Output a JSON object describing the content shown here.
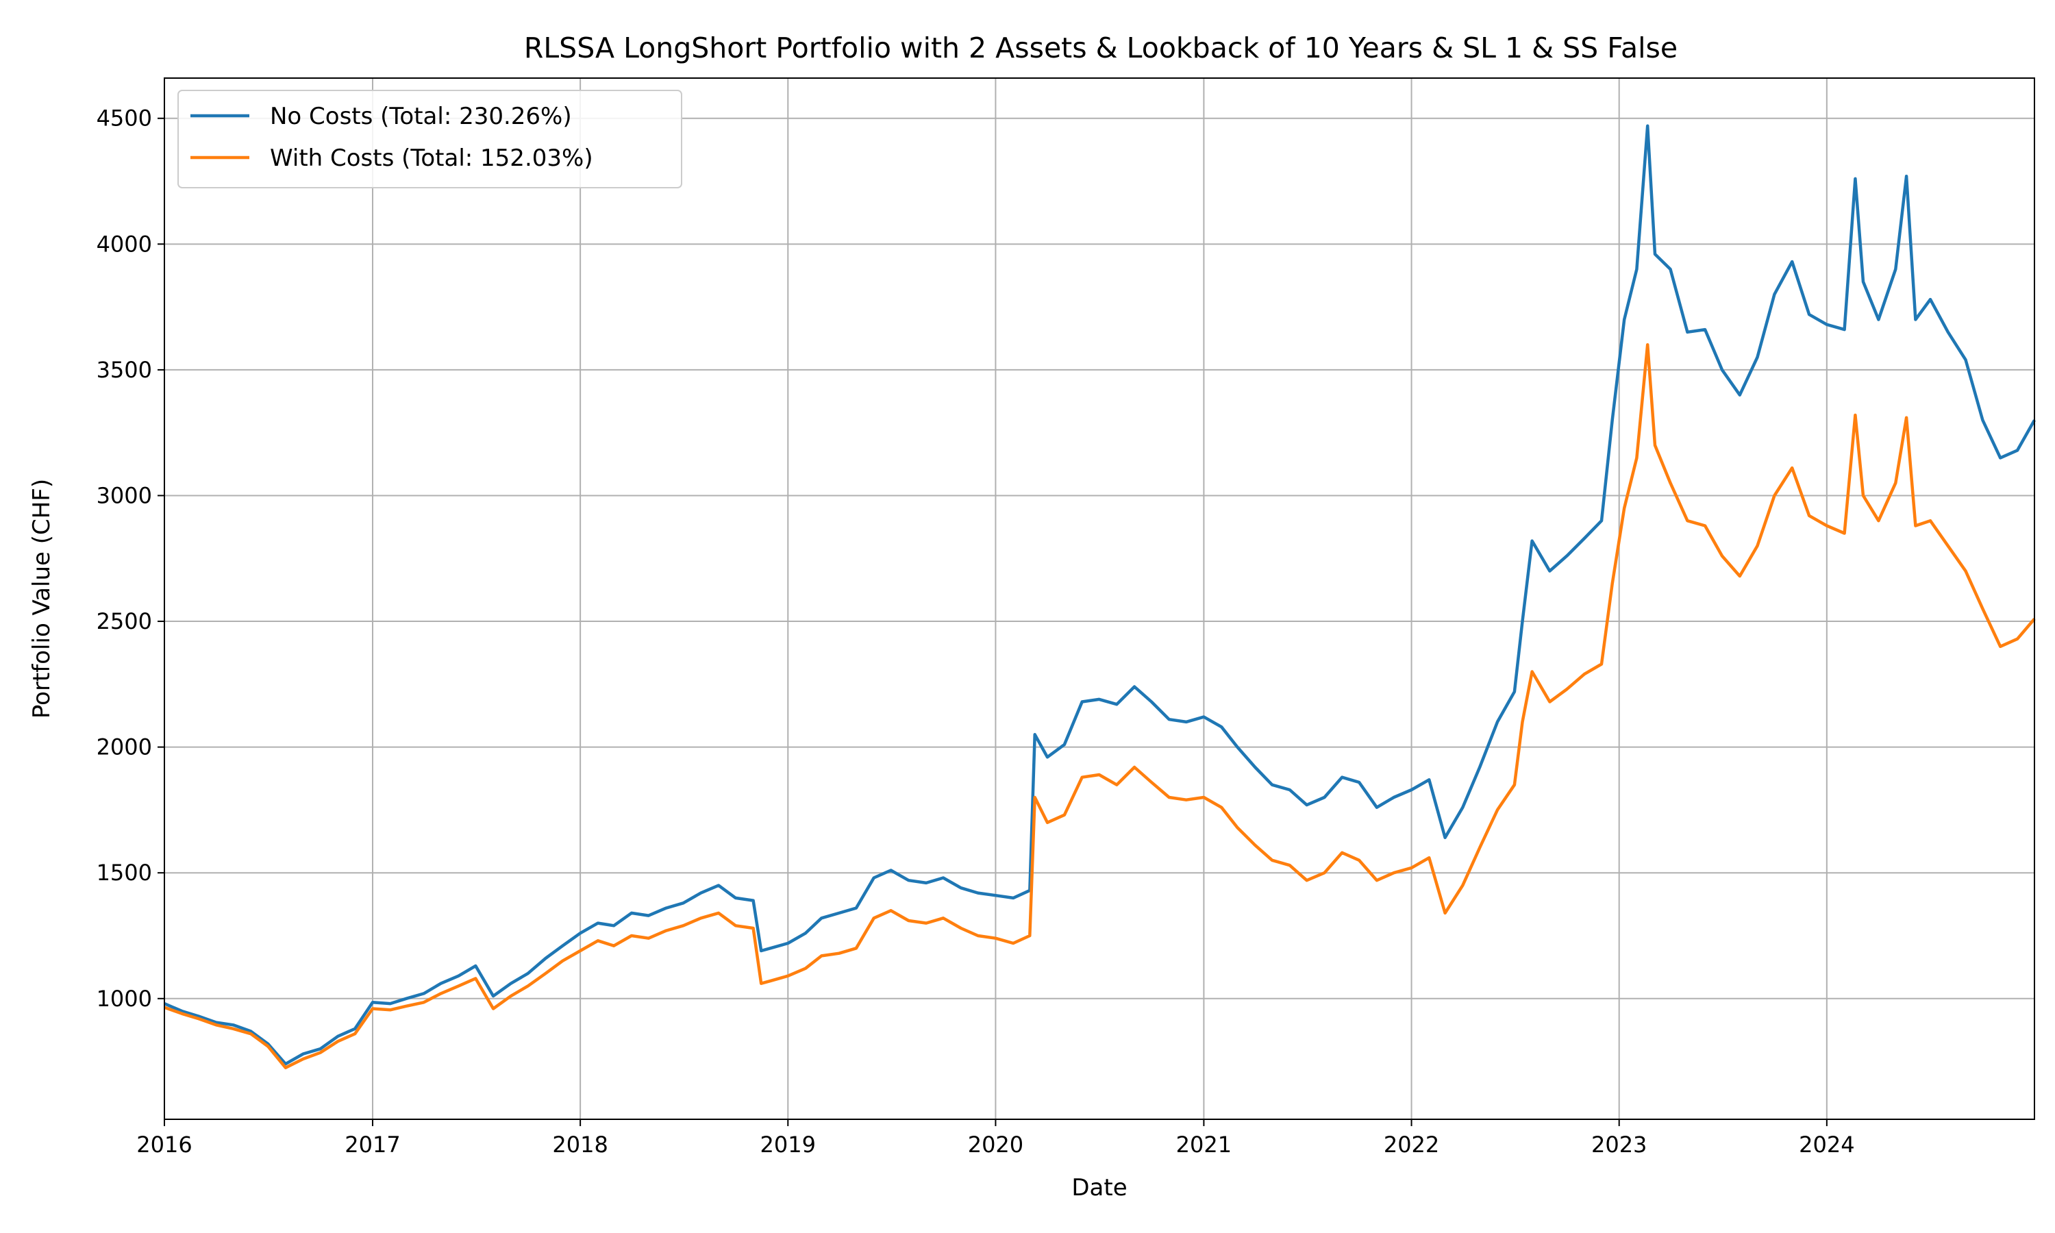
{
  "chart_data": {
    "type": "line",
    "title": "RLSSA LongShort Portfolio with 2 Assets & Lookback of 10 Years & SL 1 & SS False",
    "xlabel": "Date",
    "ylabel": "Portfolio Value (CHF)",
    "xlim": [
      "2016-01-01",
      "2024-12-31"
    ],
    "ylim": [
      520,
      4660
    ],
    "x_ticks": [
      "2016",
      "2017",
      "2018",
      "2019",
      "2020",
      "2021",
      "2022",
      "2023",
      "2024"
    ],
    "y_ticks": [
      1000,
      1500,
      2000,
      2500,
      3000,
      3500,
      4000,
      4500
    ],
    "grid": true,
    "legend_position": "top-left",
    "series": [
      {
        "name": "No Costs (Total: 230.26%)",
        "color": "#1f77b4",
        "points": [
          [
            "2016-01-01",
            980
          ],
          [
            "2016-02-01",
            950
          ],
          [
            "2016-03-01",
            930
          ],
          [
            "2016-04-01",
            905
          ],
          [
            "2016-05-01",
            895
          ],
          [
            "2016-06-01",
            870
          ],
          [
            "2016-07-01",
            820
          ],
          [
            "2016-08-01",
            740
          ],
          [
            "2016-09-01",
            780
          ],
          [
            "2016-10-01",
            800
          ],
          [
            "2016-11-01",
            850
          ],
          [
            "2016-12-01",
            880
          ],
          [
            "2017-01-01",
            985
          ],
          [
            "2017-02-01",
            980
          ],
          [
            "2017-03-01",
            1000
          ],
          [
            "2017-04-01",
            1020
          ],
          [
            "2017-05-01",
            1060
          ],
          [
            "2017-06-01",
            1090
          ],
          [
            "2017-07-01",
            1130
          ],
          [
            "2017-08-01",
            1010
          ],
          [
            "2017-09-01",
            1060
          ],
          [
            "2017-10-01",
            1100
          ],
          [
            "2017-11-01",
            1160
          ],
          [
            "2017-12-01",
            1210
          ],
          [
            "2018-01-01",
            1260
          ],
          [
            "2018-02-01",
            1300
          ],
          [
            "2018-03-01",
            1290
          ],
          [
            "2018-04-01",
            1340
          ],
          [
            "2018-05-01",
            1330
          ],
          [
            "2018-06-01",
            1360
          ],
          [
            "2018-07-01",
            1380
          ],
          [
            "2018-08-01",
            1420
          ],
          [
            "2018-09-01",
            1450
          ],
          [
            "2018-10-01",
            1400
          ],
          [
            "2018-11-01",
            1390
          ],
          [
            "2018-11-15",
            1190
          ],
          [
            "2018-12-01",
            1200
          ],
          [
            "2019-01-01",
            1220
          ],
          [
            "2019-02-01",
            1260
          ],
          [
            "2019-03-01",
            1320
          ],
          [
            "2019-04-01",
            1340
          ],
          [
            "2019-05-01",
            1360
          ],
          [
            "2019-06-01",
            1480
          ],
          [
            "2019-07-01",
            1510
          ],
          [
            "2019-08-01",
            1470
          ],
          [
            "2019-09-01",
            1460
          ],
          [
            "2019-10-01",
            1480
          ],
          [
            "2019-11-01",
            1440
          ],
          [
            "2019-12-01",
            1420
          ],
          [
            "2020-01-01",
            1410
          ],
          [
            "2020-02-01",
            1400
          ],
          [
            "2020-03-01",
            1430
          ],
          [
            "2020-03-10",
            2050
          ],
          [
            "2020-04-01",
            1960
          ],
          [
            "2020-05-01",
            2010
          ],
          [
            "2020-06-01",
            2180
          ],
          [
            "2020-07-01",
            2190
          ],
          [
            "2020-08-01",
            2170
          ],
          [
            "2020-09-01",
            2240
          ],
          [
            "2020-10-01",
            2180
          ],
          [
            "2020-11-01",
            2110
          ],
          [
            "2020-12-01",
            2100
          ],
          [
            "2021-01-01",
            2120
          ],
          [
            "2021-02-01",
            2080
          ],
          [
            "2021-03-01",
            2000
          ],
          [
            "2021-04-01",
            1920
          ],
          [
            "2021-05-01",
            1850
          ],
          [
            "2021-06-01",
            1830
          ],
          [
            "2021-07-01",
            1770
          ],
          [
            "2021-08-01",
            1800
          ],
          [
            "2021-09-01",
            1880
          ],
          [
            "2021-10-01",
            1860
          ],
          [
            "2021-11-01",
            1760
          ],
          [
            "2021-12-01",
            1800
          ],
          [
            "2022-01-01",
            1830
          ],
          [
            "2022-02-01",
            1870
          ],
          [
            "2022-03-01",
            1640
          ],
          [
            "2022-04-01",
            1760
          ],
          [
            "2022-05-01",
            1920
          ],
          [
            "2022-06-01",
            2100
          ],
          [
            "2022-07-01",
            2220
          ],
          [
            "2022-07-15",
            2500
          ],
          [
            "2022-08-01",
            2820
          ],
          [
            "2022-09-01",
            2700
          ],
          [
            "2022-10-01",
            2760
          ],
          [
            "2022-11-01",
            2830
          ],
          [
            "2022-12-01",
            2900
          ],
          [
            "2022-12-20",
            3300
          ],
          [
            "2023-01-10",
            3700
          ],
          [
            "2023-02-01",
            3900
          ],
          [
            "2023-02-20",
            4470
          ],
          [
            "2023-03-05",
            3960
          ],
          [
            "2023-04-01",
            3900
          ],
          [
            "2023-05-01",
            3650
          ],
          [
            "2023-06-01",
            3660
          ],
          [
            "2023-07-01",
            3500
          ],
          [
            "2023-08-01",
            3400
          ],
          [
            "2023-09-01",
            3550
          ],
          [
            "2023-10-01",
            3800
          ],
          [
            "2023-11-01",
            3930
          ],
          [
            "2023-12-01",
            3720
          ],
          [
            "2024-01-01",
            3680
          ],
          [
            "2024-02-01",
            3660
          ],
          [
            "2024-02-20",
            4260
          ],
          [
            "2024-03-05",
            3850
          ],
          [
            "2024-04-01",
            3700
          ],
          [
            "2024-05-01",
            3900
          ],
          [
            "2024-05-20",
            4270
          ],
          [
            "2024-06-05",
            3700
          ],
          [
            "2024-07-01",
            3780
          ],
          [
            "2024-08-01",
            3650
          ],
          [
            "2024-09-01",
            3540
          ],
          [
            "2024-10-01",
            3300
          ],
          [
            "2024-11-01",
            3150
          ],
          [
            "2024-12-01",
            3180
          ],
          [
            "2024-12-31",
            3300
          ]
        ]
      },
      {
        "name": "With Costs (Total: 152.03%)",
        "color": "#ff7f0e",
        "points": [
          [
            "2016-01-01",
            965
          ],
          [
            "2016-02-01",
            940
          ],
          [
            "2016-03-01",
            920
          ],
          [
            "2016-04-01",
            895
          ],
          [
            "2016-05-01",
            880
          ],
          [
            "2016-06-01",
            860
          ],
          [
            "2016-07-01",
            810
          ],
          [
            "2016-08-01",
            725
          ],
          [
            "2016-09-01",
            760
          ],
          [
            "2016-10-01",
            785
          ],
          [
            "2016-11-01",
            830
          ],
          [
            "2016-12-01",
            860
          ],
          [
            "2017-01-01",
            960
          ],
          [
            "2017-02-01",
            955
          ],
          [
            "2017-03-01",
            970
          ],
          [
            "2017-04-01",
            985
          ],
          [
            "2017-05-01",
            1020
          ],
          [
            "2017-06-01",
            1050
          ],
          [
            "2017-07-01",
            1080
          ],
          [
            "2017-08-01",
            960
          ],
          [
            "2017-09-01",
            1010
          ],
          [
            "2017-10-01",
            1050
          ],
          [
            "2017-11-01",
            1100
          ],
          [
            "2017-12-01",
            1150
          ],
          [
            "2018-01-01",
            1190
          ],
          [
            "2018-02-01",
            1230
          ],
          [
            "2018-03-01",
            1210
          ],
          [
            "2018-04-01",
            1250
          ],
          [
            "2018-05-01",
            1240
          ],
          [
            "2018-06-01",
            1270
          ],
          [
            "2018-07-01",
            1290
          ],
          [
            "2018-08-01",
            1320
          ],
          [
            "2018-09-01",
            1340
          ],
          [
            "2018-10-01",
            1290
          ],
          [
            "2018-11-01",
            1280
          ],
          [
            "2018-11-15",
            1060
          ],
          [
            "2018-12-01",
            1070
          ],
          [
            "2019-01-01",
            1090
          ],
          [
            "2019-02-01",
            1120
          ],
          [
            "2019-03-01",
            1170
          ],
          [
            "2019-04-01",
            1180
          ],
          [
            "2019-05-01",
            1200
          ],
          [
            "2019-06-01",
            1320
          ],
          [
            "2019-07-01",
            1350
          ],
          [
            "2019-08-01",
            1310
          ],
          [
            "2019-09-01",
            1300
          ],
          [
            "2019-10-01",
            1320
          ],
          [
            "2019-11-01",
            1280
          ],
          [
            "2019-12-01",
            1250
          ],
          [
            "2020-01-01",
            1240
          ],
          [
            "2020-02-01",
            1220
          ],
          [
            "2020-03-01",
            1250
          ],
          [
            "2020-03-10",
            1800
          ],
          [
            "2020-04-01",
            1700
          ],
          [
            "2020-05-01",
            1730
          ],
          [
            "2020-06-01",
            1880
          ],
          [
            "2020-07-01",
            1890
          ],
          [
            "2020-08-01",
            1850
          ],
          [
            "2020-09-01",
            1920
          ],
          [
            "2020-10-01",
            1860
          ],
          [
            "2020-11-01",
            1800
          ],
          [
            "2020-12-01",
            1790
          ],
          [
            "2021-01-01",
            1800
          ],
          [
            "2021-02-01",
            1760
          ],
          [
            "2021-03-01",
            1680
          ],
          [
            "2021-04-01",
            1610
          ],
          [
            "2021-05-01",
            1550
          ],
          [
            "2021-06-01",
            1530
          ],
          [
            "2021-07-01",
            1470
          ],
          [
            "2021-08-01",
            1500
          ],
          [
            "2021-09-01",
            1580
          ],
          [
            "2021-10-01",
            1550
          ],
          [
            "2021-11-01",
            1470
          ],
          [
            "2021-12-01",
            1500
          ],
          [
            "2022-01-01",
            1520
          ],
          [
            "2022-02-01",
            1560
          ],
          [
            "2022-03-01",
            1340
          ],
          [
            "2022-04-01",
            1450
          ],
          [
            "2022-05-01",
            1600
          ],
          [
            "2022-06-01",
            1750
          ],
          [
            "2022-07-01",
            1850
          ],
          [
            "2022-07-15",
            2100
          ],
          [
            "2022-08-01",
            2300
          ],
          [
            "2022-09-01",
            2180
          ],
          [
            "2022-10-01",
            2230
          ],
          [
            "2022-11-01",
            2290
          ],
          [
            "2022-12-01",
            2330
          ],
          [
            "2022-12-20",
            2650
          ],
          [
            "2023-01-10",
            2950
          ],
          [
            "2023-02-01",
            3150
          ],
          [
            "2023-02-20",
            3600
          ],
          [
            "2023-03-05",
            3200
          ],
          [
            "2023-04-01",
            3050
          ],
          [
            "2023-05-01",
            2900
          ],
          [
            "2023-06-01",
            2880
          ],
          [
            "2023-07-01",
            2760
          ],
          [
            "2023-08-01",
            2680
          ],
          [
            "2023-09-01",
            2800
          ],
          [
            "2023-10-01",
            3000
          ],
          [
            "2023-11-01",
            3110
          ],
          [
            "2023-12-01",
            2920
          ],
          [
            "2024-01-01",
            2880
          ],
          [
            "2024-02-01",
            2850
          ],
          [
            "2024-02-20",
            3320
          ],
          [
            "2024-03-05",
            3000
          ],
          [
            "2024-04-01",
            2900
          ],
          [
            "2024-05-01",
            3050
          ],
          [
            "2024-05-20",
            3310
          ],
          [
            "2024-06-05",
            2880
          ],
          [
            "2024-07-01",
            2900
          ],
          [
            "2024-08-01",
            2800
          ],
          [
            "2024-09-01",
            2700
          ],
          [
            "2024-10-01",
            2550
          ],
          [
            "2024-11-01",
            2400
          ],
          [
            "2024-12-01",
            2430
          ],
          [
            "2024-12-31",
            2510
          ]
        ]
      }
    ]
  }
}
